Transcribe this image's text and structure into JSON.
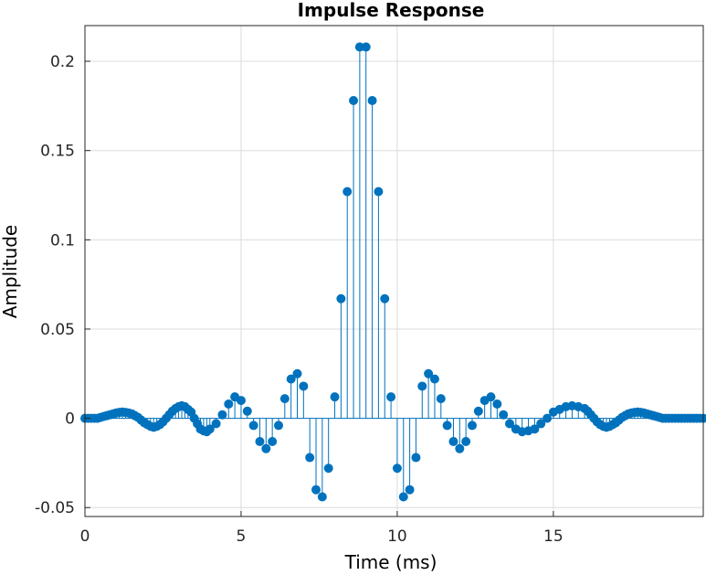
{
  "chart_data": {
    "type": "stem",
    "title": "Impulse Response",
    "xlabel": "Time (ms)",
    "ylabel": "Amplitude",
    "xlim": [
      0,
      19.8
    ],
    "ylim": [
      -0.055,
      0.22
    ],
    "xticks": [
      0,
      5,
      10,
      15
    ],
    "xtick_labels": [
      "0",
      "5",
      "10",
      "15"
    ],
    "yticks": [
      -0.05,
      0,
      0.05,
      0.1,
      0.15,
      0.2
    ],
    "ytick_labels": [
      "-0.05",
      "0",
      "0.05",
      "0.1",
      "0.15",
      "0.2"
    ],
    "grid": true,
    "color": "#0072BD",
    "grid_color": "#dcdcdc",
    "axis_color": "#262626",
    "x": [
      0.0,
      0.1,
      0.2,
      0.3,
      0.4,
      0.5,
      0.6,
      0.7,
      0.8,
      0.9,
      1.0,
      1.1,
      1.2,
      1.3,
      1.4,
      1.5,
      1.6,
      1.7,
      1.8,
      1.9,
      2.0,
      2.1,
      2.2,
      2.3,
      2.4,
      2.5,
      2.6,
      2.7,
      2.8,
      2.9,
      3.0,
      3.1,
      3.2,
      3.3,
      3.4,
      3.5,
      3.6,
      3.7,
      3.8,
      3.9,
      4.0,
      4.2,
      4.4,
      4.6,
      4.8,
      5.0,
      5.2,
      5.4,
      5.6,
      5.8,
      6.0,
      6.2,
      6.4,
      6.6,
      6.8,
      7.0,
      7.2,
      7.4,
      7.6,
      7.8,
      8.0,
      8.2,
      8.4,
      8.6,
      8.8,
      9.0,
      9.2,
      9.4,
      9.6,
      9.8,
      10.0,
      10.2,
      10.4,
      10.6,
      10.8,
      11.0,
      11.2,
      11.4,
      11.6,
      11.8,
      12.0,
      12.2,
      12.4,
      12.6,
      12.8,
      13.0,
      13.2,
      13.4,
      13.6,
      13.8,
      14.0,
      14.2,
      14.4,
      14.6,
      14.8,
      15.0,
      15.2,
      15.4,
      15.6,
      15.8,
      16.0,
      16.1,
      16.2,
      16.3,
      16.4,
      16.5,
      16.6,
      16.7,
      16.8,
      16.9,
      17.0,
      17.1,
      17.2,
      17.3,
      17.4,
      17.5,
      17.6,
      17.7,
      17.8,
      17.9,
      18.0,
      18.1,
      18.2,
      18.3,
      18.4,
      18.5,
      18.6,
      18.7,
      18.8,
      18.9,
      19.0,
      19.1,
      19.2,
      19.3,
      19.4,
      19.5,
      19.6,
      19.7,
      19.8
    ],
    "values": [
      0.0,
      0.0,
      0.0,
      0.0,
      0.0,
      0.0005,
      0.001,
      0.0015,
      0.002,
      0.0025,
      0.003,
      0.0033,
      0.0035,
      0.0033,
      0.003,
      0.0025,
      0.0015,
      0.0005,
      -0.001,
      -0.0025,
      -0.0035,
      -0.0045,
      -0.005,
      -0.0045,
      -0.0035,
      -0.002,
      0.0,
      0.002,
      0.004,
      0.0055,
      0.0065,
      0.007,
      0.0065,
      0.005,
      0.0035,
      0.0,
      -0.003,
      -0.006,
      -0.007,
      -0.0075,
      -0.006,
      -0.003,
      0.002,
      0.008,
      0.012,
      0.01,
      0.004,
      -0.004,
      -0.013,
      -0.017,
      -0.013,
      -0.004,
      0.011,
      0.022,
      0.025,
      0.018,
      -0.022,
      -0.04,
      -0.044,
      -0.028,
      0.012,
      0.067,
      0.127,
      0.178,
      0.208,
      0.208,
      0.178,
      0.127,
      0.067,
      0.012,
      -0.028,
      -0.044,
      -0.04,
      -0.022,
      0.018,
      0.025,
      0.022,
      0.011,
      -0.004,
      -0.013,
      -0.017,
      -0.013,
      -0.004,
      0.004,
      0.01,
      0.012,
      0.008,
      0.002,
      -0.003,
      -0.006,
      -0.0075,
      -0.007,
      -0.006,
      -0.003,
      0.0,
      0.0035,
      0.005,
      0.0065,
      0.007,
      0.0065,
      0.0055,
      0.004,
      0.002,
      0.0,
      -0.002,
      -0.0035,
      -0.0045,
      -0.005,
      -0.0045,
      -0.0035,
      -0.0025,
      -0.001,
      0.0005,
      0.0015,
      0.0025,
      0.003,
      0.0033,
      0.0035,
      0.0033,
      0.003,
      0.0025,
      0.002,
      0.0015,
      0.001,
      0.0005,
      0.0,
      0.0,
      0.0,
      0.0,
      0.0,
      0.0,
      0.0,
      0.0,
      0.0,
      0.0,
      0.0,
      0.0,
      0.0,
      0.0
    ]
  }
}
